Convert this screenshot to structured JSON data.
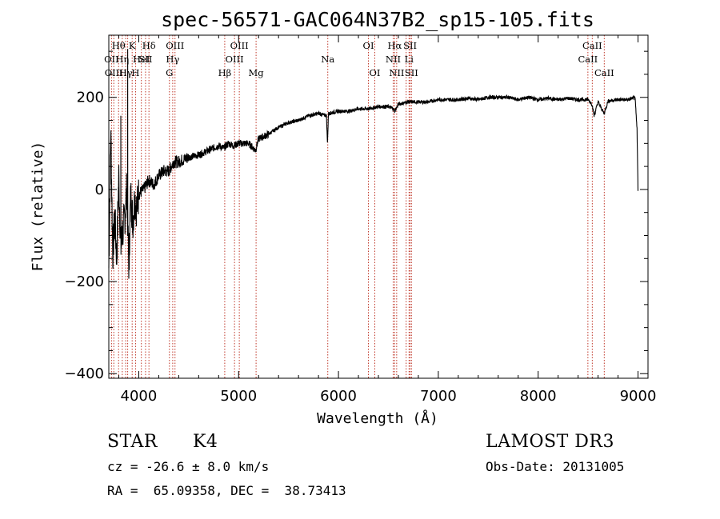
{
  "chart_data": {
    "type": "line",
    "title": "spec-56571-GAC064N37B2_sp15-105.fits",
    "xlabel": "Wavelength (Å)",
    "ylabel": "Flux (relative)",
    "xlim": [
      3700,
      9100
    ],
    "ylim": [
      -410,
      335
    ],
    "xticks": [
      4000,
      5000,
      6000,
      7000,
      8000,
      9000
    ],
    "yticks": [
      -400,
      -200,
      0,
      200
    ],
    "grid": false,
    "series": [
      {
        "values_x": [
          3700,
          3720,
          3740,
          3760,
          3780,
          3800,
          3820,
          3840,
          3860,
          3880,
          3900,
          3920,
          3940,
          3960,
          3980,
          4000,
          4050,
          4100,
          4150,
          4200,
          4250,
          4300,
          4350,
          4400,
          4500,
          4600,
          4700,
          4800,
          4850,
          4900,
          4950,
          5000,
          5100,
          5170,
          5200,
          5300,
          5400,
          5500,
          5600,
          5700,
          5800,
          5880,
          5890,
          5900,
          6000,
          6100,
          6200,
          6300,
          6400,
          6500,
          6550,
          6563,
          6600,
          6700,
          6800,
          6900,
          7000,
          7100,
          7200,
          7300,
          7400,
          7500,
          7600,
          7700,
          7800,
          7900,
          8000,
          8100,
          8200,
          8300,
          8400,
          8500,
          8540,
          8560,
          8600,
          8660,
          8700,
          8800,
          8900,
          8970,
          8990,
          9000
        ],
        "values_y": [
          -170,
          130,
          -140,
          -60,
          -150,
          30,
          -130,
          -90,
          -60,
          0,
          -160,
          -10,
          -70,
          -20,
          -40,
          -10,
          0,
          20,
          10,
          30,
          40,
          40,
          60,
          60,
          70,
          75,
          85,
          95,
          90,
          100,
          95,
          100,
          100,
          85,
          110,
          120,
          135,
          145,
          150,
          160,
          165,
          160,
          100,
          165,
          170,
          170,
          175,
          175,
          180,
          180,
          175,
          170,
          185,
          190,
          190,
          190,
          195,
          195,
          195,
          198,
          195,
          200,
          200,
          200,
          195,
          200,
          195,
          198,
          195,
          198,
          195,
          195,
          185,
          160,
          190,
          165,
          192,
          195,
          195,
          200,
          130,
          0
        ],
        "spikes": [
          {
            "x": 3820,
            "y": 160
          },
          {
            "x": 3889,
            "y": 305
          },
          {
            "x": 3905,
            "y": -175
          }
        ]
      }
    ],
    "line_markers": [
      {
        "x": 3727,
        "label": "OII",
        "row": 1
      },
      {
        "x": 3750,
        "label": "OIII",
        "row": 2
      },
      {
        "x": 3798,
        "label": "Hθ",
        "row": 0
      },
      {
        "x": 3835,
        "label": "Hη",
        "row": 1
      },
      {
        "x": 3869,
        "label": "Hγ",
        "row": 2
      },
      {
        "x": 3889,
        "label": "",
        "row": -1
      },
      {
        "x": 3934,
        "label": "K",
        "row": 0
      },
      {
        "x": 3968,
        "label": "H",
        "row": 2
      },
      {
        "x": 4026,
        "label": "HeI",
        "row": 1
      },
      {
        "x": 4068,
        "label": "SII",
        "row": 1
      },
      {
        "x": 4102,
        "label": "Hδ",
        "row": 0
      },
      {
        "x": 4307,
        "label": "G",
        "row": 2
      },
      {
        "x": 4340,
        "label": "Hγ",
        "row": 1
      },
      {
        "x": 4363,
        "label": "OIII",
        "row": 0
      },
      {
        "x": 4861,
        "label": "Hβ",
        "row": 2
      },
      {
        "x": 4959,
        "label": "OIII",
        "row": 1
      },
      {
        "x": 5007,
        "label": "OIII",
        "row": 0
      },
      {
        "x": 5175,
        "label": "Mg",
        "row": 2
      },
      {
        "x": 5893,
        "label": "Na",
        "row": 1
      },
      {
        "x": 6300,
        "label": "OI",
        "row": 0
      },
      {
        "x": 6364,
        "label": "OI",
        "row": 2
      },
      {
        "x": 6548,
        "label": "NII",
        "row": 1
      },
      {
        "x": 6563,
        "label": "Hα",
        "row": 0
      },
      {
        "x": 6583,
        "label": "NII",
        "row": 2
      },
      {
        "x": 6678,
        "label": "",
        "row": -1
      },
      {
        "x": 6707,
        "label": "Li",
        "row": 1
      },
      {
        "x": 6717,
        "label": "SII",
        "row": 0
      },
      {
        "x": 6731,
        "label": "SII",
        "row": 2
      },
      {
        "x": 8498,
        "label": "CaII",
        "row": 1
      },
      {
        "x": 8542,
        "label": "CaII",
        "row": 0
      },
      {
        "x": 8662,
        "label": "CaII",
        "row": 2
      }
    ]
  },
  "info": {
    "object_class": "STAR",
    "subclass": "K4",
    "survey": "LAMOST DR3",
    "velocity": "cz = -26.6 ± 8.0 km/s",
    "obs_date": "Obs-Date: 20131005",
    "coords": "RA =  65.09358, DEC =  38.73413"
  },
  "colors": {
    "spectrum": "#000000",
    "marker_line": "#c0392b",
    "axis": "#000000"
  }
}
